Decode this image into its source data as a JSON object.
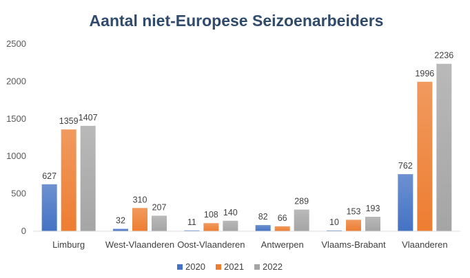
{
  "chart_data": {
    "type": "bar",
    "title": "Aantal niet-Europese Seizoenarbeiders",
    "xlabel": "",
    "ylabel": "",
    "categories": [
      "Limburg",
      "West-Vlaanderen",
      "Oost-Vlaanderen",
      "Antwerpen",
      "Vlaams-Brabant",
      "Vlaanderen"
    ],
    "series": [
      {
        "name": "2020",
        "values": [
          627,
          32,
          11,
          82,
          10,
          762
        ],
        "color": "#4472c4"
      },
      {
        "name": "2021",
        "values": [
          1359,
          310,
          108,
          66,
          153,
          1996
        ],
        "color": "#ed7d31"
      },
      {
        "name": "2022",
        "values": [
          1407,
          207,
          140,
          289,
          193,
          2236
        ],
        "color": "#a5a5a5"
      }
    ],
    "ylim": [
      0,
      2500
    ],
    "yticks": [
      0,
      500,
      1000,
      1500,
      2000,
      2500
    ],
    "grid": false,
    "legend": "bottom"
  }
}
